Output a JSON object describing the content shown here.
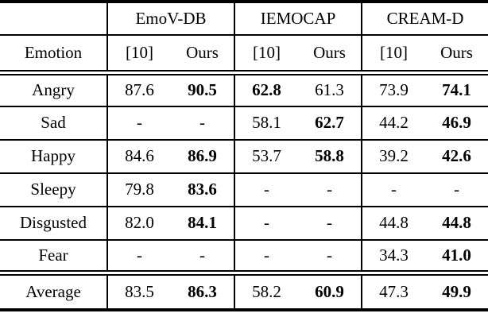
{
  "page": {
    "background_color": "#ffffff",
    "text_color": "#000000",
    "description": "Academic paper results table: emotion recognition accuracy per dataset, baseline [10] vs Ours"
  },
  "table": {
    "group_headers": [
      "EmoV-DB",
      "IEMOCAP",
      "CREAM-D"
    ],
    "emotion_header": "Emotion",
    "method_headers": {
      "baseline": "[10]",
      "ours": "Ours"
    },
    "rows": [
      {
        "emotion": "Angry",
        "values": [
          "87.6",
          "90.5",
          "62.8",
          "61.3",
          "73.9",
          "74.1"
        ],
        "bold": [
          false,
          true,
          true,
          false,
          false,
          true
        ]
      },
      {
        "emotion": "Sad",
        "values": [
          "-",
          "-",
          "58.1",
          "62.7",
          "44.2",
          "46.9"
        ],
        "bold": [
          false,
          false,
          false,
          true,
          false,
          true
        ]
      },
      {
        "emotion": "Happy",
        "values": [
          "84.6",
          "86.9",
          "53.7",
          "58.8",
          "39.2",
          "42.6"
        ],
        "bold": [
          false,
          true,
          false,
          true,
          false,
          true
        ]
      },
      {
        "emotion": "Sleepy",
        "values": [
          "79.8",
          "83.6",
          "-",
          "-",
          "-",
          "-"
        ],
        "bold": [
          false,
          true,
          false,
          false,
          false,
          false
        ]
      },
      {
        "emotion": "Disgusted",
        "values": [
          "82.0",
          "84.1",
          "-",
          "-",
          "44.8",
          "44.8"
        ],
        "bold": [
          false,
          true,
          false,
          false,
          false,
          true
        ]
      },
      {
        "emotion": "Fear",
        "values": [
          "-",
          "-",
          "-",
          "-",
          "34.3",
          "41.0"
        ],
        "bold": [
          false,
          false,
          false,
          false,
          false,
          true
        ]
      },
      {
        "emotion": "Average",
        "values": [
          "83.5",
          "86.3",
          "58.2",
          "60.9",
          "47.3",
          "49.9"
        ],
        "bold": [
          false,
          true,
          false,
          true,
          false,
          true
        ]
      }
    ]
  }
}
